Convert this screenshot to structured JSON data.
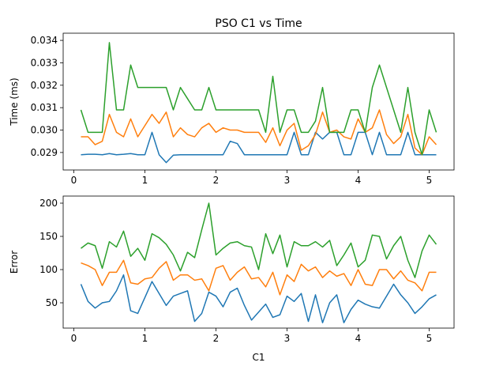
{
  "chart_data": [
    {
      "type": "line",
      "title": "PSO C1 vs Time",
      "ylabel": "Time (ms)",
      "x": [
        0.1,
        0.2,
        0.3,
        0.4,
        0.5,
        0.6,
        0.7,
        0.8,
        0.9,
        1.0,
        1.1,
        1.2,
        1.3,
        1.4,
        1.5,
        1.6,
        1.7,
        1.8,
        1.9,
        2.0,
        2.1,
        2.2,
        2.3,
        2.4,
        2.5,
        2.6,
        2.7,
        2.8,
        2.9,
        3.0,
        3.1,
        3.2,
        3.3,
        3.4,
        3.5,
        3.6,
        3.7,
        3.8,
        3.9,
        4.0,
        4.1,
        4.2,
        4.3,
        4.4,
        4.5,
        4.6,
        4.7,
        4.8,
        4.9,
        5.0,
        5.1
      ],
      "series": [
        {
          "color": "#1f77b4",
          "values": [
            0.0289,
            0.02892,
            0.02892,
            0.0289,
            0.02895,
            0.0289,
            0.02892,
            0.02895,
            0.0289,
            0.0289,
            0.0299,
            0.0289,
            0.02855,
            0.02888,
            0.0289,
            0.0289,
            0.0289,
            0.0289,
            0.0289,
            0.0289,
            0.0289,
            0.0295,
            0.0294,
            0.0289,
            0.0289,
            0.0289,
            0.0289,
            0.0289,
            0.0289,
            0.0289,
            0.0299,
            0.0289,
            0.0289,
            0.0299,
            0.0296,
            0.0299,
            0.0299,
            0.0289,
            0.0289,
            0.0299,
            0.0299,
            0.0289,
            0.0299,
            0.0289,
            0.0289,
            0.0289,
            0.0299,
            0.0289,
            0.0289,
            0.0289,
            0.0289
          ]
        },
        {
          "color": "#ff7f0e",
          "values": [
            0.0297,
            0.0297,
            0.02935,
            0.0295,
            0.0307,
            0.0299,
            0.0297,
            0.0305,
            0.0297,
            0.0302,
            0.0307,
            0.0303,
            0.0308,
            0.0297,
            0.0301,
            0.0298,
            0.0297,
            0.0301,
            0.0303,
            0.0299,
            0.0301,
            0.03,
            0.03,
            0.0299,
            0.0299,
            0.0299,
            0.02945,
            0.0301,
            0.0293,
            0.03,
            0.0303,
            0.0291,
            0.0293,
            0.0298,
            0.0308,
            0.0299,
            0.03,
            0.0297,
            0.0296,
            0.0305,
            0.0299,
            0.0301,
            0.0309,
            0.0298,
            0.0294,
            0.0297,
            0.0307,
            0.0292,
            0.0289,
            0.0297,
            0.02935
          ]
        },
        {
          "color": "#2ca02c",
          "values": [
            0.0309,
            0.0299,
            0.0299,
            0.0299,
            0.0339,
            0.0309,
            0.0309,
            0.0329,
            0.0319,
            0.0319,
            0.0319,
            0.0319,
            0.0319,
            0.0309,
            0.0319,
            0.0314,
            0.0309,
            0.0309,
            0.0319,
            0.0309,
            0.0309,
            0.0309,
            0.0309,
            0.0309,
            0.0309,
            0.0309,
            0.0299,
            0.0324,
            0.0299,
            0.0309,
            0.0309,
            0.0299,
            0.0299,
            0.0304,
            0.0319,
            0.0299,
            0.0299,
            0.0299,
            0.0309,
            0.0309,
            0.0299,
            0.0319,
            0.0329,
            0.0319,
            0.0309,
            0.0299,
            0.0319,
            0.0299,
            0.0289,
            0.0309,
            0.0299
          ]
        }
      ],
      "xlim": [
        -0.15,
        5.35
      ],
      "ylim": [
        0.02822,
        0.03432
      ],
      "xticks": [
        0,
        1,
        2,
        3,
        4,
        5
      ],
      "yticks": [
        0.029,
        {
          "value": 0.03,
          "label": "0.030"
        },
        0.031,
        0.032,
        0.033,
        0.034
      ]
    },
    {
      "type": "line",
      "xlabel": "C1",
      "ylabel": "Error",
      "x": [
        0.1,
        0.2,
        0.3,
        0.4,
        0.5,
        0.6,
        0.7,
        0.8,
        0.9,
        1.0,
        1.1,
        1.2,
        1.3,
        1.4,
        1.5,
        1.6,
        1.7,
        1.8,
        1.9,
        2.0,
        2.1,
        2.2,
        2.3,
        2.4,
        2.5,
        2.6,
        2.7,
        2.8,
        2.9,
        3.0,
        3.1,
        3.2,
        3.3,
        3.4,
        3.5,
        3.6,
        3.7,
        3.8,
        3.9,
        4.0,
        4.1,
        4.2,
        4.3,
        4.4,
        4.5,
        4.6,
        4.7,
        4.8,
        4.9,
        5.0,
        5.1
      ],
      "series": [
        {
          "color": "#1f77b4",
          "values": [
            78,
            52,
            42,
            50,
            52,
            68,
            92,
            38,
            34,
            58,
            82,
            64,
            46,
            60,
            64,
            68,
            22,
            34,
            66,
            60,
            44,
            66,
            72,
            46,
            24,
            36,
            48,
            28,
            32,
            60,
            52,
            64,
            22,
            62,
            20,
            50,
            62,
            20,
            40,
            54,
            48,
            44,
            42,
            60,
            78,
            62,
            50,
            34,
            44,
            56,
            62
          ]
        },
        {
          "color": "#ff7f0e",
          "values": [
            110,
            106,
            100,
            76,
            96,
            96,
            114,
            80,
            78,
            86,
            88,
            102,
            112,
            84,
            92,
            92,
            84,
            86,
            68,
            102,
            106,
            84,
            96,
            104,
            86,
            88,
            74,
            96,
            62,
            92,
            82,
            108,
            98,
            104,
            88,
            98,
            90,
            94,
            76,
            100,
            78,
            76,
            100,
            100,
            86,
            98,
            84,
            80,
            68,
            96,
            96
          ]
        },
        {
          "color": "#2ca02c",
          "values": [
            132,
            140,
            136,
            102,
            142,
            134,
            158,
            120,
            132,
            114,
            154,
            148,
            138,
            122,
            98,
            126,
            118,
            160,
            200,
            122,
            132,
            140,
            142,
            136,
            134,
            100,
            154,
            124,
            152,
            104,
            142,
            136,
            136,
            142,
            134,
            144,
            106,
            122,
            140,
            104,
            114,
            152,
            150,
            116,
            136,
            150,
            114,
            88,
            128,
            152,
            138
          ]
        }
      ],
      "xlim": [
        -0.15,
        5.35
      ],
      "ylim": [
        11.9,
        210.7
      ],
      "xticks": [
        0,
        1,
        2,
        3,
        4,
        5
      ],
      "yticks": [
        50,
        100,
        150,
        200
      ]
    }
  ]
}
